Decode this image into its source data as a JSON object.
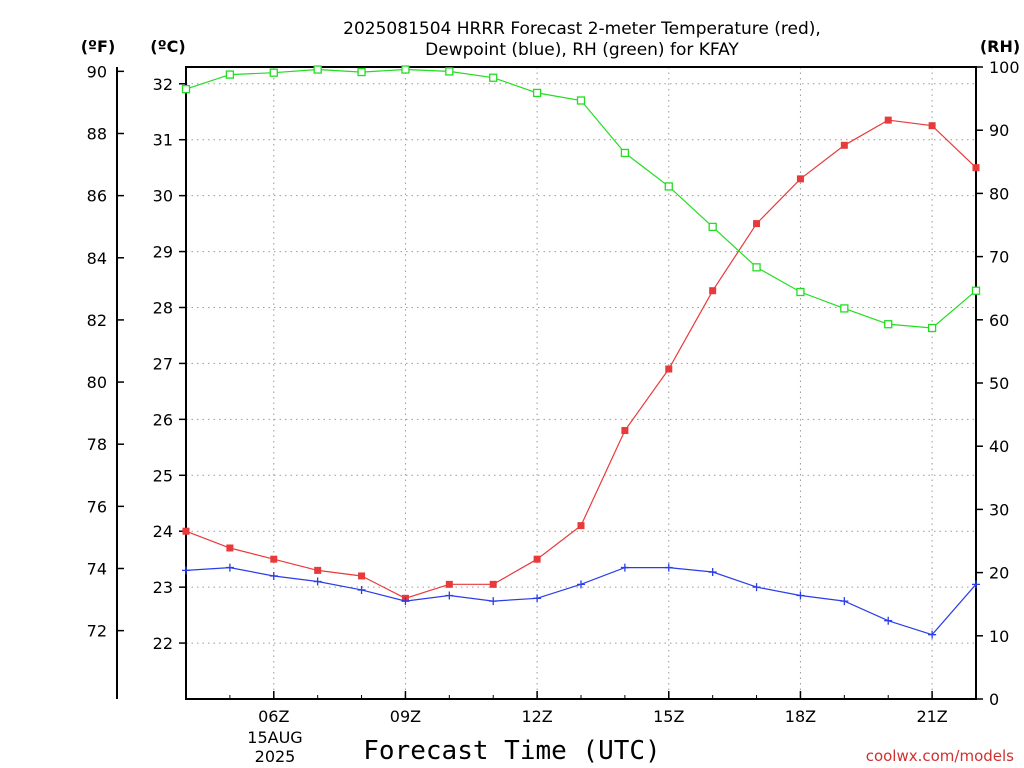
{
  "chart_data": {
    "type": "line",
    "title_line1": "2025081504 HRRR Forecast 2-meter Temperature (red),",
    "title_line2": "Dewpoint (blue), RH (green) for KFAY",
    "xlabel": "Forecast Time (UTC)",
    "credit": "coolwx.com/models",
    "date_label": [
      "15AUG",
      "2025"
    ],
    "units": {
      "left_f": "(ºF)",
      "left_c": "(ºC)",
      "right": "(RH)"
    },
    "x_hours": [
      4,
      5,
      6,
      7,
      8,
      9,
      10,
      11,
      12,
      13,
      14,
      15,
      16,
      17,
      18,
      19,
      20,
      21,
      22
    ],
    "xlim": [
      4,
      22
    ],
    "x_ticks": [
      {
        "hour": 6,
        "label": "06Z"
      },
      {
        "hour": 9,
        "label": "09Z"
      },
      {
        "hour": 12,
        "label": "12Z"
      },
      {
        "hour": 15,
        "label": "15Z"
      },
      {
        "hour": 18,
        "label": "18Z"
      },
      {
        "hour": 21,
        "label": "21Z"
      }
    ],
    "y_celsius": {
      "lim": [
        21.0,
        32.3
      ],
      "ticks": [
        22,
        23,
        24,
        25,
        26,
        27,
        28,
        29,
        30,
        31,
        32
      ]
    },
    "y_fahrenheit": {
      "ticks": [
        72,
        74,
        76,
        78,
        80,
        82,
        84,
        86,
        88,
        90
      ]
    },
    "y_rh": {
      "lim": [
        0,
        100
      ],
      "ticks": [
        0,
        10,
        20,
        30,
        40,
        50,
        60,
        70,
        80,
        90,
        100
      ]
    },
    "grid": true,
    "series": [
      {
        "name": "Temperature",
        "axis": "celsius",
        "color": "#e83a3a",
        "marker": "filled-square",
        "values": [
          24.0,
          23.7,
          23.5,
          23.3,
          23.2,
          22.8,
          23.05,
          23.05,
          23.5,
          24.1,
          25.8,
          26.9,
          28.3,
          29.5,
          30.3,
          30.9,
          31.35,
          31.25,
          30.5
        ]
      },
      {
        "name": "Dewpoint",
        "axis": "celsius",
        "color": "#2a3de8",
        "marker": "plus",
        "values": [
          23.3,
          23.35,
          23.2,
          23.1,
          22.95,
          22.75,
          22.85,
          22.75,
          22.8,
          23.05,
          23.35,
          23.35,
          23.27,
          23.0,
          22.85,
          22.75,
          22.4,
          22.15,
          23.05
        ]
      },
      {
        "name": "RH",
        "axis": "rh",
        "color": "#22dd22",
        "marker": "open-square",
        "values": [
          96.5,
          98.8,
          99.1,
          99.6,
          99.2,
          99.6,
          99.3,
          98.3,
          95.9,
          94.7,
          86.4,
          81.1,
          74.7,
          68.3,
          64.4,
          61.8,
          59.3,
          58.7,
          64.6
        ]
      }
    ]
  }
}
